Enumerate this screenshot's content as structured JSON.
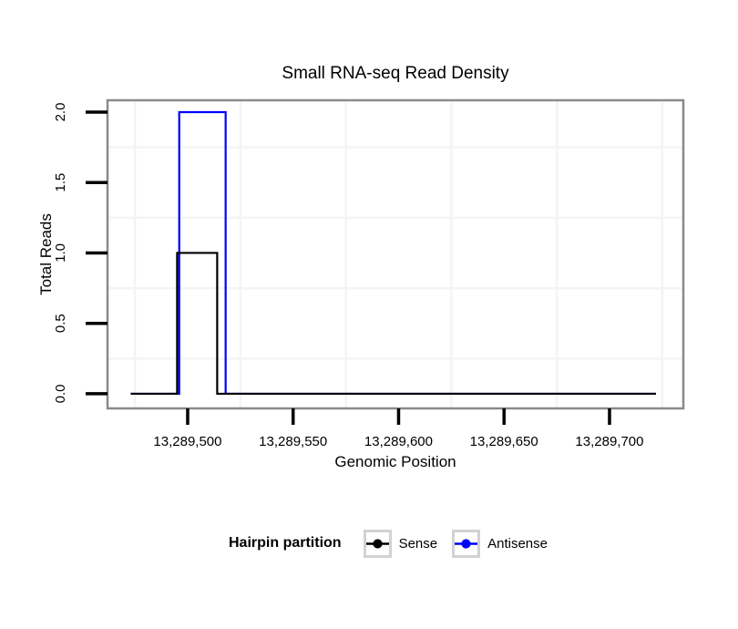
{
  "chart_data": {
    "type": "line",
    "line_shape": "step",
    "title": "Small RNA-seq Read Density",
    "xlabel": "Genomic Position",
    "ylabel": "Total Reads",
    "legend_title": "Hairpin partition",
    "legend_position": "bottom",
    "grid": "minor gridlines only, very light gray, no major gridlines visible",
    "xlim": [
      13289462,
      13289735
    ],
    "ylim": [
      -0.104,
      2.084
    ],
    "x_ticks": [
      {
        "value": 13289500,
        "label": "13,289,500"
      },
      {
        "value": 13289550,
        "label": "13,289,550"
      },
      {
        "value": 13289600,
        "label": "13,289,600"
      },
      {
        "value": 13289650,
        "label": "13,289,650"
      },
      {
        "value": 13289700,
        "label": "13,289,700"
      }
    ],
    "y_ticks": [
      {
        "value": 0.0,
        "label": "0.0"
      },
      {
        "value": 0.5,
        "label": "0.5"
      },
      {
        "value": 1.0,
        "label": "1.0"
      },
      {
        "value": 1.5,
        "label": "1.5"
      },
      {
        "value": 2.0,
        "label": "2.0"
      }
    ],
    "x_minor_gridlines": [
      13289475,
      13289525,
      13289575,
      13289625,
      13289675,
      13289725
    ],
    "y_minor_gridlines": [
      0.25,
      0.75,
      1.25,
      1.75
    ],
    "colors": {
      "panel_border": "#8a8a8a",
      "gridline": "#f4f4f4",
      "axis_tick": "#000000",
      "text": "#000000"
    },
    "series": [
      {
        "name": "Sense",
        "color": "#000000",
        "x": [
          13289473,
          13289495,
          13289495,
          13289514,
          13289514,
          13289722
        ],
        "y": [
          0,
          0,
          1,
          1,
          0,
          0
        ]
      },
      {
        "name": "Antisense",
        "color": "#0000ff",
        "x": [
          13289473,
          13289496,
          13289496,
          13289518,
          13289518,
          13289722
        ],
        "y": [
          0,
          0,
          2,
          2,
          0,
          0
        ]
      }
    ]
  }
}
